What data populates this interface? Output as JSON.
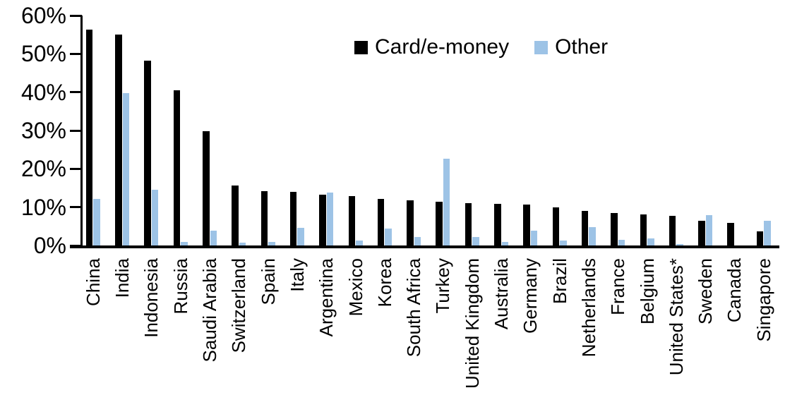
{
  "chart_data": {
    "type": "bar",
    "title": "",
    "xlabel": "",
    "ylabel": "",
    "ylim": [
      0,
      60
    ],
    "y_ticks": [
      "0%",
      "10%",
      "20%",
      "30%",
      "40%",
      "50%",
      "60%"
    ],
    "grid": false,
    "legend_position": "top-center",
    "categories": [
      "China",
      "India",
      "Indonesia",
      "Russia",
      "Saudi Arabia",
      "Switzerland",
      "Spain",
      "Italy",
      "Argentina",
      "Mexico",
      "Korea",
      "South Africa",
      "Turkey",
      "United Kingdom",
      "Australia",
      "Germany",
      "Brazil",
      "Netherlands",
      "France",
      "Belgium",
      "United States*",
      "Sweden",
      "Canada",
      "Singapore"
    ],
    "series": [
      {
        "name": "Card/e-money",
        "color": "#000000",
        "values": [
          56.3,
          55.0,
          48.2,
          40.4,
          29.8,
          15.6,
          14.2,
          14.0,
          13.3,
          12.8,
          12.2,
          11.7,
          11.5,
          11.0,
          10.8,
          10.6,
          10.0,
          9.1,
          8.5,
          8.1,
          7.7,
          6.4,
          5.9,
          3.7
        ]
      },
      {
        "name": "Other",
        "color": "#9DC3E6",
        "values": [
          12.2,
          39.7,
          14.6,
          1.0,
          3.8,
          0.7,
          1.0,
          4.6,
          13.8,
          1.3,
          4.5,
          2.3,
          22.7,
          2.3,
          0.9,
          3.9,
          1.2,
          4.7,
          1.5,
          1.9,
          0.3,
          8.0,
          0.0,
          6.5
        ]
      }
    ]
  },
  "colors": {
    "axis": "#000000",
    "card_series": "#000000",
    "other_series": "#9DC3E6",
    "background": "#ffffff"
  }
}
